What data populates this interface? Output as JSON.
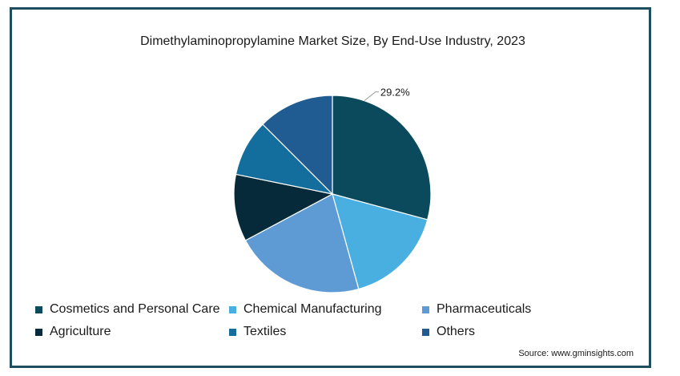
{
  "chart_data": {
    "type": "pie",
    "title": "Dimethylaminopropylamine Market Size, By End-Use Industry, 2023",
    "slices": [
      {
        "label": "Cosmetics and Personal Care",
        "value": 29.2,
        "color": "#0a4a5c",
        "data_label": "29.2%"
      },
      {
        "label": "Chemical Manufacturing",
        "value": 16.5,
        "color": "#49aee0",
        "data_label": ""
      },
      {
        "label": "Pharmaceuticals",
        "value": 21.5,
        "color": "#5e9bd5",
        "data_label": ""
      },
      {
        "label": "Agriculture",
        "value": 11.0,
        "color": "#062a3a",
        "data_label": ""
      },
      {
        "label": "Textiles",
        "value": 9.3,
        "color": "#136e9d",
        "data_label": ""
      },
      {
        "label": "Others",
        "value": 12.5,
        "color": "#205c91",
        "data_label": ""
      }
    ],
    "legend_position": "bottom"
  },
  "source": "Source: www.gminsights.com"
}
